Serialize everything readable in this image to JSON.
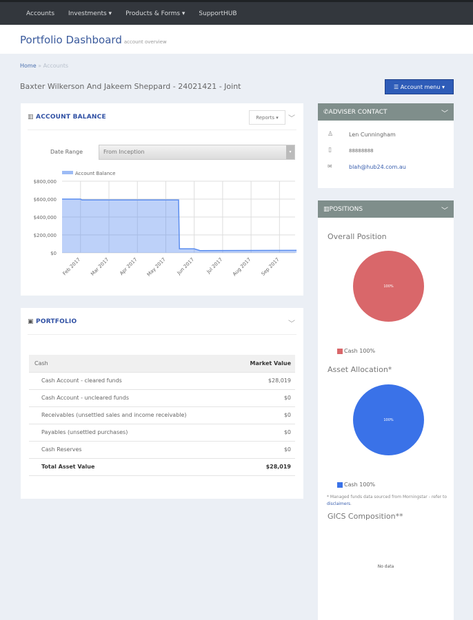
{
  "nav": [
    "Accounts",
    "Investments ▾",
    "Products & Forms ▾",
    "SupportHUB"
  ],
  "header": {
    "title": "Portfolio Dashboard",
    "subtitle": "account overview"
  },
  "breadcrumb": {
    "home": "Home",
    "sep": "»",
    "current": "Accounts"
  },
  "account": {
    "name": "Baxter Wilkerson And Jakeem Sheppard - 24021421 - Joint",
    "menu": "☰ Account menu ▾"
  },
  "balance": {
    "title": "ACCOUNT BALANCE",
    "reports": "Reports ▾",
    "date_label": "Date Range",
    "date_value": "From Inception"
  },
  "chart_data": {
    "type": "area",
    "legend": "Account Balance",
    "ylim": [
      0,
      800000
    ],
    "yticks": [
      "$0",
      "$200,000",
      "$400,000",
      "$600,000",
      "$800,000"
    ],
    "xticks": [
      "Feb 2017",
      "Mar 2017",
      "Apr 2017",
      "May 2017",
      "Jun 2017",
      "Jul 2017",
      "Aug 2017",
      "Sep 2017"
    ],
    "x_month_index": [
      -0.65,
      0,
      0.05,
      3.45,
      3.48,
      4.0,
      4.2,
      7.6
    ],
    "y": [
      600000,
      600000,
      590000,
      590000,
      45000,
      45000,
      25000,
      28000
    ],
    "color": "#5b8def"
  },
  "portfolio": {
    "title": "PORTFOLIO",
    "header": [
      "Cash",
      "Market Value"
    ],
    "rows": [
      [
        "Cash Account - cleared funds",
        "$28,019"
      ],
      [
        "Cash Account - uncleared funds",
        "$0"
      ],
      [
        "Receivables (unsettled sales and income receivable)",
        "$0"
      ],
      [
        "Payables (unsettled purchases)",
        "$0"
      ],
      [
        "Cash Reserves",
        "$0"
      ]
    ],
    "total": [
      "Total Asset Value",
      "$28,019"
    ]
  },
  "adviser": {
    "title": "ADVISER CONTACT",
    "name": "Len Cunningham",
    "phone": "88888888",
    "email": "blah@hub24.com.au"
  },
  "positions": {
    "title": "POSITIONS",
    "overall": "Overall Position",
    "overall_pct": "100%",
    "overall_legend": "Cash 100%",
    "overall_color": "#d9676a",
    "asset": "Asset Allocation*",
    "asset_pct": "100%",
    "asset_legend": "Cash 100%",
    "asset_color": "#3a72e8",
    "note": "* Managed funds data sourced from Morningstar - refer to ",
    "note_link": "disclaimers",
    "note_end": ".",
    "gics": "GICS Composition**",
    "nodata": "No data"
  }
}
